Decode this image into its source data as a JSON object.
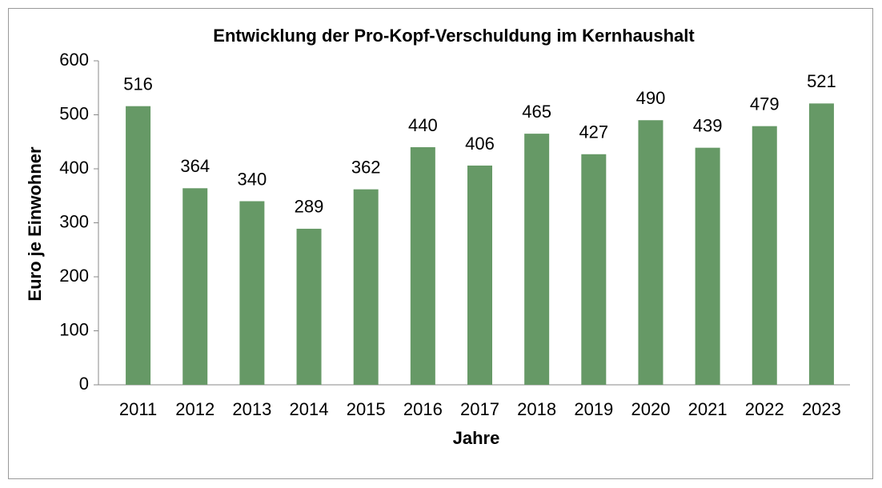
{
  "chart_data": {
    "type": "bar",
    "title": "Entwicklung der Pro-Kopf-Verschuldung im Kernhaushalt",
    "x_label": "Jahre",
    "y_label": "Euro je Einwohner",
    "categories": [
      "2011",
      "2012",
      "2013",
      "2014",
      "2015",
      "2016",
      "2017",
      "2018",
      "2019",
      "2020",
      "2021",
      "2022",
      "2023"
    ],
    "values": [
      516,
      364,
      340,
      289,
      362,
      440,
      406,
      465,
      427,
      490,
      439,
      479,
      521
    ],
    "color": "#669966",
    "ylim": [
      0,
      600
    ],
    "yticks": [
      0,
      100,
      200,
      300,
      400,
      500,
      600
    ],
    "grid": false
  }
}
